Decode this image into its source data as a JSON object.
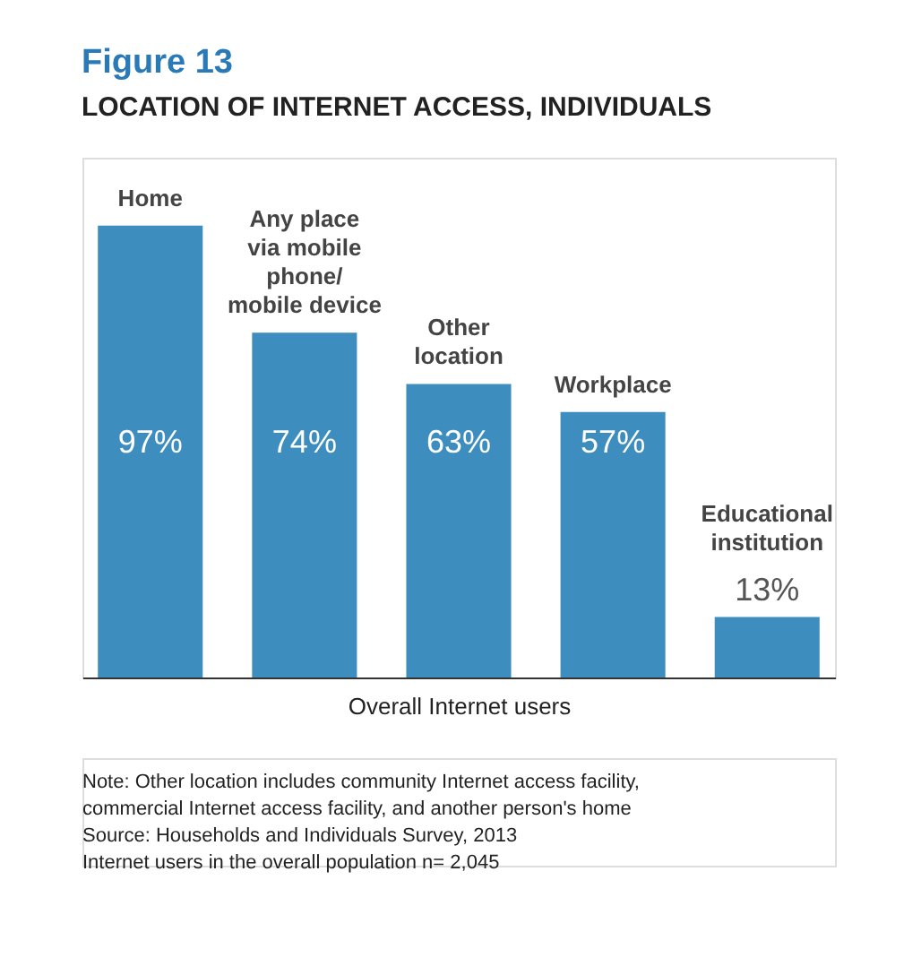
{
  "chart_data": {
    "type": "bar",
    "title": "Figure 13",
    "subtitle": "LOCATION OF INTERNET ACCESS, INDIVIDUALS",
    "categories": [
      "Home",
      "Any place\nvia mobile\nphone/\nmobile device",
      "Other\nlocation",
      "Workplace",
      "Educational\ninstitution"
    ],
    "values": [
      97,
      74,
      63,
      57,
      13
    ],
    "value_labels": [
      "97%",
      "74%",
      "63%",
      "57%",
      "13%"
    ],
    "color": "#3d8dbf",
    "xlabel": "Overall Internet users",
    "annotations": [
      "Note: Other location includes community Internet access facility,\ncommercial Internet access facility, and another person's home",
      "Source: Households and Individuals Survey, 2013",
      "Internet users in the overall population n= 2,045"
    ]
  }
}
